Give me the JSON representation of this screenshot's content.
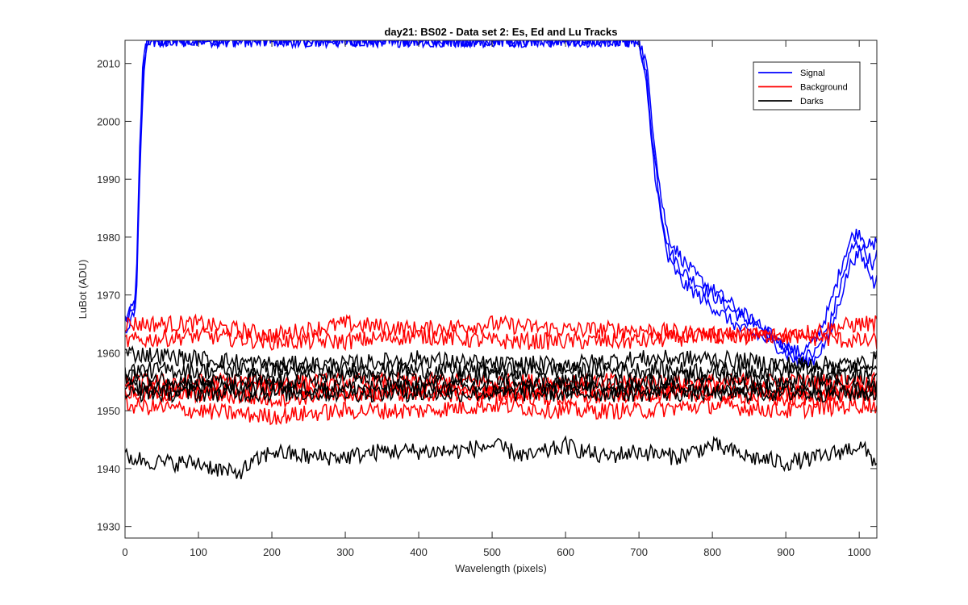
{
  "chart_data": {
    "type": "line",
    "title": "day21: BS02 - Data set 2: Es, Ed and Lu Tracks",
    "xlabel": "Wavelength (pixels)",
    "ylabel": "LuBot (ADU)",
    "xlim": [
      0,
      1024
    ],
    "ylim": [
      1928,
      2014
    ],
    "xticks": [
      "0",
      "100",
      "200",
      "300",
      "400",
      "500",
      "600",
      "700",
      "800",
      "900",
      "1000"
    ],
    "yticks": [
      "1930",
      "1940",
      "1950",
      "1960",
      "1970",
      "1980",
      "1990",
      "2000",
      "2010"
    ],
    "grid": false,
    "legend_position": "top-right",
    "legend": [
      {
        "name": "Signal",
        "color": "#0000ff"
      },
      {
        "name": "Background",
        "color": "#ff0000"
      },
      {
        "name": "Darks",
        "color": "#000000"
      }
    ],
    "series": [
      {
        "name": "Signal",
        "group": "Signal",
        "color": "#0000ff",
        "x": [
          0,
          10,
          15,
          20,
          25,
          30,
          35,
          45,
          700,
          710,
          720,
          730,
          740,
          760,
          780,
          800,
          820,
          840,
          860,
          880,
          900,
          920,
          940,
          960,
          980,
          990,
          1000,
          1010,
          1020,
          1024
        ],
        "y": [
          1966,
          1967,
          1970,
          1995,
          2012,
          2014,
          2014,
          2014,
          2014,
          2008,
          1995,
          1985,
          1978,
          1974,
          1972,
          1970,
          1968,
          1966,
          1965,
          1963,
          1961,
          1960,
          1962,
          1968,
          1977,
          1980,
          1981,
          1979,
          1978,
          1980
        ]
      },
      {
        "name": "Signal",
        "group": "Signal",
        "color": "#0000ff",
        "x": [
          0,
          10,
          15,
          20,
          25,
          30,
          45,
          700,
          710,
          720,
          730,
          740,
          760,
          780,
          800,
          820,
          840,
          860,
          880,
          900,
          920,
          940,
          960,
          980,
          990,
          1000,
          1010,
          1020,
          1024
        ],
        "y": [
          1963,
          1966,
          1968,
          1990,
          2008,
          2014,
          2014,
          2014,
          2010,
          1998,
          1987,
          1980,
          1976,
          1973,
          1971,
          1969,
          1967,
          1965,
          1963,
          1961,
          1959,
          1960,
          1965,
          1974,
          1978,
          1979,
          1977,
          1975,
          1977
        ]
      },
      {
        "name": "Signal",
        "group": "Signal",
        "color": "#0000ff",
        "x": [
          0,
          10,
          15,
          20,
          25,
          30,
          45,
          700,
          710,
          720,
          730,
          740,
          760,
          780,
          800,
          820,
          840,
          860,
          880,
          900,
          920,
          940,
          960,
          980,
          990,
          1000,
          1010,
          1020,
          1024
        ],
        "y": [
          1965,
          1968,
          1969,
          1992,
          2010,
          2014,
          2014,
          2014,
          2006,
          1993,
          1983,
          1976,
          1972,
          1970,
          1968,
          1966,
          1964,
          1963,
          1962,
          1960,
          1958,
          1959,
          1963,
          1972,
          1976,
          1977,
          1975,
          1972,
          1974
        ]
      },
      {
        "name": "Background",
        "group": "Background",
        "color": "#ff0000",
        "x": [
          0,
          100,
          200,
          300,
          400,
          500,
          600,
          700,
          800,
          900,
          1000,
          1024
        ],
        "y": [
          1965,
          1965,
          1963,
          1965,
          1964,
          1965,
          1964,
          1964,
          1963,
          1963,
          1965,
          1965
        ]
      },
      {
        "name": "Background",
        "group": "Background",
        "color": "#ff0000",
        "x": [
          0,
          100,
          200,
          300,
          400,
          500,
          600,
          700,
          800,
          900,
          1000,
          1024
        ],
        "y": [
          1962,
          1963,
          1962,
          1962,
          1963,
          1962,
          1962,
          1962,
          1963,
          1963,
          1962,
          1962
        ]
      },
      {
        "name": "Background",
        "group": "Background",
        "color": "#ff0000",
        "x": [
          0,
          100,
          200,
          300,
          400,
          500,
          600,
          700,
          800,
          900,
          1000,
          1024
        ],
        "y": [
          1955,
          1955,
          1955,
          1955,
          1955,
          1955,
          1955,
          1955,
          1955,
          1955,
          1955,
          1955
        ]
      },
      {
        "name": "Background",
        "group": "Background",
        "color": "#ff0000",
        "x": [
          0,
          100,
          200,
          300,
          400,
          500,
          600,
          700,
          800,
          900,
          1000,
          1024
        ],
        "y": [
          1953,
          1953,
          1952,
          1953,
          1953,
          1953,
          1952,
          1953,
          1953,
          1952,
          1953,
          1953
        ]
      },
      {
        "name": "Background",
        "group": "Background",
        "color": "#ff0000",
        "x": [
          0,
          100,
          200,
          300,
          400,
          500,
          600,
          700,
          800,
          900,
          1000,
          1024
        ],
        "y": [
          1951,
          1950,
          1949,
          1950,
          1950,
          1951,
          1950,
          1950,
          1951,
          1950,
          1951,
          1951
        ]
      },
      {
        "name": "Background",
        "group": "Background",
        "color": "#ff0000",
        "x": [
          0,
          100,
          200,
          300,
          400,
          500,
          600,
          700,
          800,
          900,
          1000,
          1024
        ],
        "y": [
          1954,
          1953,
          1954,
          1953,
          1954,
          1953,
          1954,
          1953,
          1954,
          1953,
          1953,
          1954
        ]
      },
      {
        "name": "Darks",
        "group": "Darks",
        "color": "#000000",
        "x": [
          0,
          100,
          200,
          300,
          400,
          500,
          600,
          700,
          800,
          900,
          1000,
          1024
        ],
        "y": [
          1960,
          1959,
          1958,
          1958,
          1959,
          1958,
          1958,
          1959,
          1959,
          1958,
          1958,
          1959
        ]
      },
      {
        "name": "Darks",
        "group": "Darks",
        "color": "#000000",
        "x": [
          0,
          100,
          200,
          300,
          400,
          500,
          600,
          700,
          800,
          900,
          1000,
          1024
        ],
        "y": [
          1957,
          1957,
          1957,
          1957,
          1957,
          1957,
          1957,
          1957,
          1957,
          1957,
          1957,
          1957
        ]
      },
      {
        "name": "Darks",
        "group": "Darks",
        "color": "#000000",
        "x": [
          0,
          100,
          200,
          300,
          400,
          500,
          600,
          700,
          800,
          900,
          1000,
          1024
        ],
        "y": [
          1956,
          1955,
          1955,
          1956,
          1955,
          1956,
          1955,
          1955,
          1956,
          1955,
          1956,
          1955
        ]
      },
      {
        "name": "Darks",
        "group": "Darks",
        "color": "#000000",
        "x": [
          0,
          100,
          200,
          300,
          400,
          500,
          600,
          700,
          800,
          900,
          1000,
          1024
        ],
        "y": [
          1954,
          1954,
          1954,
          1954,
          1954,
          1954,
          1954,
          1954,
          1954,
          1954,
          1954,
          1954
        ]
      },
      {
        "name": "Darks",
        "group": "Darks",
        "color": "#000000",
        "x": [
          0,
          100,
          200,
          300,
          400,
          500,
          600,
          700,
          800,
          900,
          1000,
          1024
        ],
        "y": [
          1953,
          1953,
          1953,
          1953,
          1953,
          1953,
          1953,
          1953,
          1953,
          1953,
          1953,
          1953
        ]
      },
      {
        "name": "Darks",
        "group": "Darks",
        "color": "#000000",
        "x": [
          0,
          50,
          100,
          150,
          200,
          250,
          300,
          350,
          400,
          450,
          500,
          550,
          600,
          650,
          700,
          750,
          800,
          850,
          900,
          950,
          1000,
          1024
        ],
        "y": [
          1942,
          1941,
          1941,
          1939,
          1943,
          1942,
          1942,
          1943,
          1943,
          1943,
          1944,
          1942,
          1944,
          1942,
          1943,
          1942,
          1944,
          1942,
          1941,
          1942,
          1944,
          1941
        ]
      }
    ]
  }
}
